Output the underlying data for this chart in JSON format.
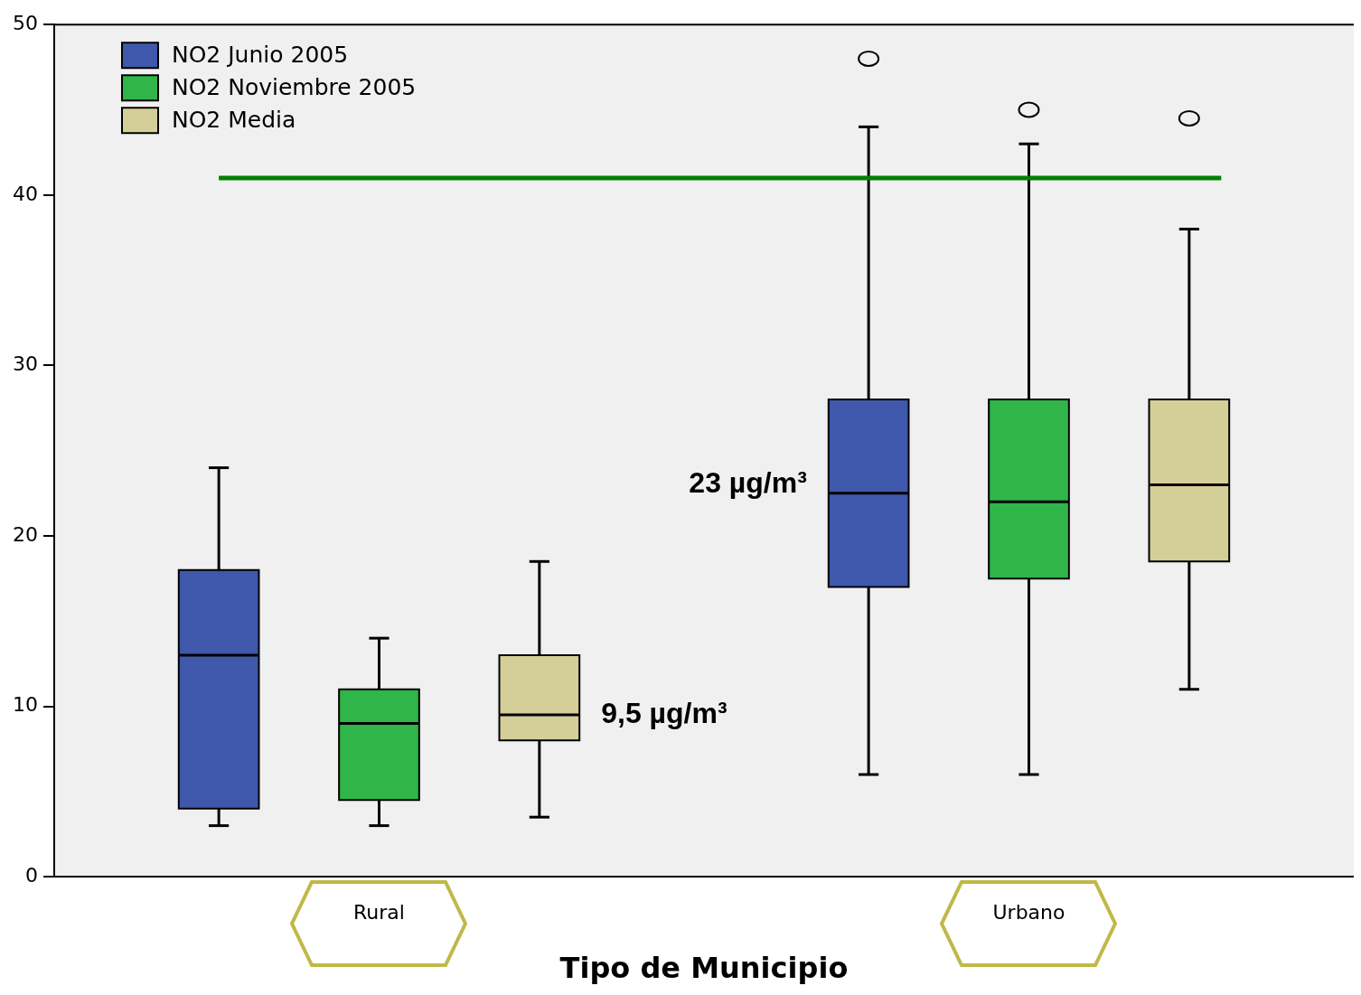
{
  "chart_data": {
    "type": "box",
    "categories": [
      "Rural",
      "Urbano"
    ],
    "xlabel": "Tipo de Municipio",
    "ylim": [
      0,
      50
    ],
    "yticks": [
      0,
      10,
      20,
      30,
      40,
      50
    ],
    "legend": "top left",
    "series": [
      {
        "name": "NO2 Junio 2005",
        "color": "#3f58ab",
        "boxes": [
          {
            "low": 3,
            "q1": 4,
            "median": 13,
            "q3": 18,
            "high": 24
          },
          {
            "low": 6,
            "q1": 17,
            "median": 22.5,
            "q3": 28,
            "high": 44,
            "outliers": [
              48
            ]
          }
        ]
      },
      {
        "name": "NO2 Noviembre 2005",
        "color": "#2fb548",
        "boxes": [
          {
            "low": 3,
            "q1": 4.5,
            "median": 9,
            "q3": 11,
            "high": 14
          },
          {
            "low": 6,
            "q1": 17.5,
            "median": 22,
            "q3": 28,
            "high": 43,
            "outliers": [
              45
            ]
          }
        ]
      },
      {
        "name": "NO2 Media",
        "color": "#d4cf98",
        "boxes": [
          {
            "low": 3.5,
            "q1": 8,
            "median": 9.5,
            "q3": 13,
            "high": 18.5
          },
          {
            "low": 11,
            "q1": 18.5,
            "median": 23,
            "q3": 28,
            "high": 38,
            "outliers": [
              44.5
            ]
          }
        ]
      }
    ],
    "ref_lines": [
      {
        "axis": "y",
        "value": 41,
        "color": "#008000"
      }
    ],
    "annotations": [
      "9,5 µg/m³",
      "23 µg/m³"
    ]
  }
}
